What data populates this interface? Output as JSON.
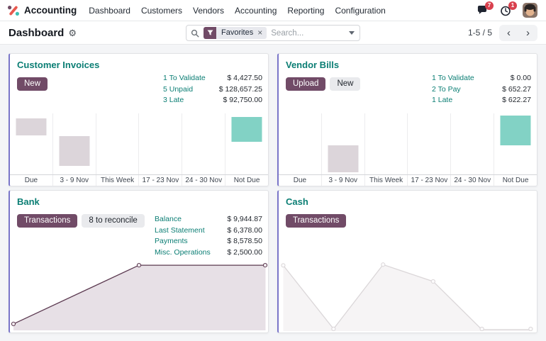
{
  "topbar": {
    "brand": "Accounting",
    "nav_items": [
      "Dashboard",
      "Customers",
      "Vendors",
      "Accounting",
      "Reporting",
      "Configuration"
    ],
    "messages_badge": "7",
    "activities_badge": "1"
  },
  "control_panel": {
    "title": "Dashboard",
    "search_placeholder": "Search...",
    "facet_label": "Favorites",
    "pager_text": "1-5 / 5"
  },
  "icons": {
    "gear": "⚙",
    "close": "×",
    "prev": "‹",
    "next": "›"
  },
  "colors": {
    "primary": "#714B67",
    "accent_border": "#7A76C9",
    "teal_text": "#0B7E74",
    "badge": "#D9414E",
    "bar_muted": "#DCD5DA",
    "bar_teal": "#82D2C5",
    "bank_line": "#5C3A51",
    "bank_fill": "#E7E0E6",
    "bank_marker_fill": "#F0EAEE",
    "cash_line": "#DBD7D9",
    "cash_fill": "#F6F4F5",
    "cash_marker_fill": "#FBFAFB"
  },
  "cards": [
    {
      "title": "Customer Invoices",
      "buttons": [
        {
          "label": "New",
          "style": "primary"
        }
      ],
      "stats": [
        {
          "label": "1 To Validate",
          "value": "$ 4,427.50"
        },
        {
          "label": "5 Unpaid",
          "value": "$ 128,657.25"
        },
        {
          "label": "3 Late",
          "value": "$ 92,750.00"
        }
      ],
      "chart": {
        "type": "bar",
        "categories": [
          "Due",
          "3 - 9 Nov",
          "This Week",
          "17 - 23 Nov",
          "24 - 30 Nov",
          "Not Due"
        ],
        "bars": [
          {
            "category": "Due",
            "top_pct": 8,
            "height_pct": 28,
            "color": "bar_muted"
          },
          {
            "category": "3 - 9 Nov",
            "top_pct": 37,
            "height_pct": 49,
            "color": "bar_muted"
          },
          {
            "category": "Not Due",
            "top_pct": 6,
            "height_pct": 41,
            "color": "bar_teal"
          }
        ]
      }
    },
    {
      "title": "Vendor Bills",
      "buttons": [
        {
          "label": "Upload",
          "style": "primary"
        },
        {
          "label": "New",
          "style": "secondary"
        }
      ],
      "stats": [
        {
          "label": "1 To Validate",
          "value": "$ 0.00"
        },
        {
          "label": "2 To Pay",
          "value": "$ 652.27"
        },
        {
          "label": "1 Late",
          "value": "$ 622.27"
        }
      ],
      "chart": {
        "type": "bar",
        "categories": [
          "Due",
          "3 - 9 Nov",
          "This Week",
          "17 - 23 Nov",
          "24 - 30 Nov",
          "Not Due"
        ],
        "bars": [
          {
            "category": "3 - 9 Nov",
            "top_pct": 52,
            "height_pct": 45,
            "color": "bar_muted"
          },
          {
            "category": "Not Due",
            "top_pct": 4,
            "height_pct": 48,
            "color": "bar_teal"
          }
        ]
      }
    },
    {
      "title": "Bank",
      "buttons": [
        {
          "label": "Transactions",
          "style": "primary"
        },
        {
          "label": "8 to reconcile",
          "style": "secondary"
        }
      ],
      "stats": [
        {
          "label": "Balance",
          "value": "$ 9,944.87"
        },
        {
          "label": "Last Statement",
          "value": "$ 6,378.00"
        },
        {
          "label": "Payments",
          "value": "$ 8,578.50"
        },
        {
          "label": "Misc. Operations",
          "value": "$ 2,500.00"
        }
      ],
      "chart": {
        "type": "line",
        "color_key": "bank",
        "points": [
          [
            1.1,
            91
          ],
          [
            50,
            9
          ],
          [
            99.3,
            9
          ]
        ]
      }
    },
    {
      "title": "Cash",
      "buttons": [
        {
          "label": "Transactions",
          "style": "primary"
        }
      ],
      "stats": [],
      "chart": {
        "type": "line",
        "color_key": "cash",
        "points": [
          [
            1.5,
            10
          ],
          [
            21.1,
            97
          ],
          [
            40.4,
            9
          ],
          [
            59.9,
            32
          ],
          [
            78.9,
            98
          ],
          [
            97.9,
            98
          ]
        ]
      }
    }
  ]
}
